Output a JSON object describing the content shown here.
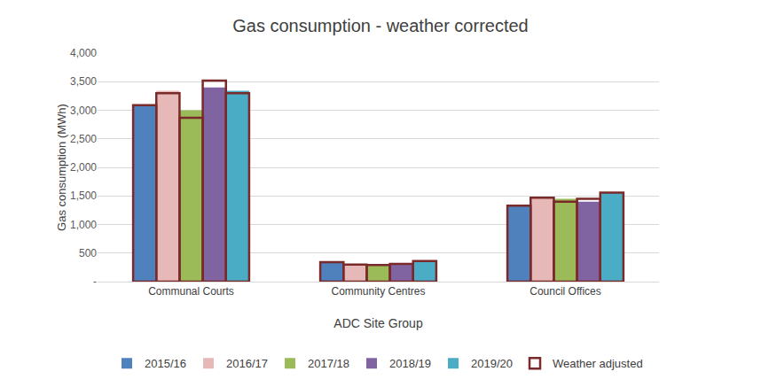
{
  "chart_data": {
    "type": "bar",
    "title": "Gas consumption - weather corrected",
    "x_label": "ADC Site Group",
    "y_label": "Gas consumption (MWh)",
    "categories": [
      "Communal Courts",
      "Community Centres",
      "Council Offices"
    ],
    "series": [
      {
        "name": "2015/16",
        "color": "#4f81bd",
        "values": [
          3080,
          330,
          1330
        ],
        "weather_adjusted": [
          3090,
          340,
          1330
        ]
      },
      {
        "name": "2016/17",
        "color": "#e6b9b8",
        "values": [
          3340,
          310,
          1480
        ],
        "weather_adjusted": [
          3300,
          300,
          1470
        ]
      },
      {
        "name": "2017/18",
        "color": "#9bbb59",
        "values": [
          3000,
          300,
          1450
        ],
        "weather_adjusted": [
          2870,
          290,
          1400
        ]
      },
      {
        "name": "2018/19",
        "color": "#8064a2",
        "values": [
          3400,
          320,
          1400
        ],
        "weather_adjusted": [
          3520,
          310,
          1450
        ]
      },
      {
        "name": "2019/20",
        "color": "#4bacc6",
        "values": [
          3340,
          360,
          1560
        ],
        "weather_adjusted": [
          3300,
          360,
          1560
        ]
      }
    ],
    "adjusted": {
      "name": "Weather adjusted",
      "color": "#7a2a2a"
    },
    "ylim": [
      0,
      4000
    ],
    "yticks": [
      {
        "value": 0,
        "label": "-"
      },
      500,
      {
        "value": 1000,
        "label": "1,000"
      },
      {
        "value": 1500,
        "label": "1,500"
      },
      {
        "value": 2000,
        "label": "2,000"
      },
      {
        "value": 2500,
        "label": "2,500"
      },
      {
        "value": 3000,
        "label": "3,000"
      },
      {
        "value": 3500,
        "label": "3,500"
      },
      {
        "value": 4000,
        "label": "4,000"
      }
    ],
    "grid": true,
    "legend": "bottom"
  }
}
